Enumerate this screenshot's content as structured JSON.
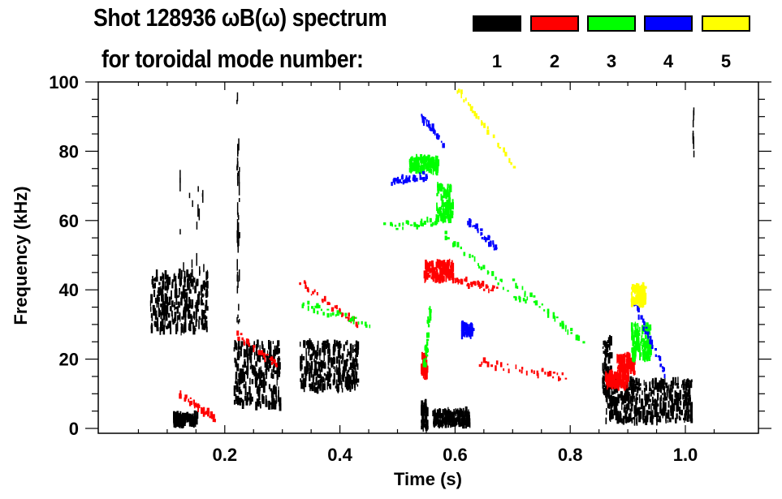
{
  "chart_data": {
    "type": "heatmap",
    "title": "Shot 128936 ωB(ω) spectrum",
    "subtitle": "for toroidal mode number:",
    "xlabel": "Time (s)",
    "ylabel": "Frequency (kHz)",
    "xlim": [
      0.0,
      1.05
    ],
    "ylim": [
      0,
      100
    ],
    "x_ticks": [
      0.2,
      0.4,
      0.6,
      0.8,
      1.0
    ],
    "x_tick_labels": [
      "0.2",
      "0.4",
      "0.6",
      "0.8",
      "1.0"
    ],
    "x_minor_step": 0.05,
    "y_ticks": [
      0,
      20,
      40,
      60,
      80,
      100
    ],
    "y_tick_labels": [
      "0",
      "20",
      "40",
      "60",
      "80",
      "100"
    ],
    "y_minor_step": 5,
    "grid": false,
    "legend_placement": "top-right",
    "legend": [
      {
        "mode": "1",
        "color": "#000000"
      },
      {
        "mode": "2",
        "color": "#ff0000"
      },
      {
        "mode": "3",
        "color": "#00ff00"
      },
      {
        "mode": "4",
        "color": "#0000ff"
      },
      {
        "mode": "5",
        "color": "#ffff00"
      }
    ],
    "features": [
      {
        "mode": 1,
        "name": "early-burst",
        "t": [
          0.07,
          0.17
        ],
        "f": [
          28,
          45
        ],
        "kind": "blob"
      },
      {
        "mode": 1,
        "name": "early-upper",
        "t": [
          0.12,
          0.165
        ],
        "f": [
          40,
          75
        ],
        "kind": "streaks"
      },
      {
        "mode": 1,
        "name": "early-low",
        "t": [
          0.11,
          0.15
        ],
        "f": [
          1,
          4
        ],
        "kind": "blob"
      },
      {
        "mode": 1,
        "name": "burst-0.22",
        "t": [
          0.215,
          0.295
        ],
        "f": [
          6,
          25
        ],
        "kind": "blob"
      },
      {
        "mode": 1,
        "name": "burst-0.34",
        "t": [
          0.33,
          0.43
        ],
        "f": [
          11,
          25
        ],
        "kind": "blob"
      },
      {
        "mode": 1,
        "name": "spike-0.545",
        "t": [
          0.54,
          0.55
        ],
        "f": [
          0,
          8
        ],
        "kind": "blob"
      },
      {
        "mode": 1,
        "name": "low-0.58",
        "t": [
          0.56,
          0.625
        ],
        "f": [
          1,
          5
        ],
        "kind": "blob"
      },
      {
        "mode": 1,
        "name": "late-burst",
        "t": [
          0.86,
          1.01
        ],
        "f": [
          2,
          14
        ],
        "kind": "blob"
      },
      {
        "mode": 1,
        "name": "late-vertical",
        "t": [
          0.855,
          0.87
        ],
        "f": [
          10,
          26
        ],
        "kind": "blob"
      },
      {
        "mode": 1,
        "name": "streak-0.22",
        "t": [
          0.22,
          0.225
        ],
        "f": [
          30,
          96
        ],
        "kind": "streaks"
      },
      {
        "mode": 1,
        "name": "streak-1.01",
        "t": [
          1.012,
          1.014
        ],
        "f": [
          78,
          92
        ],
        "kind": "streaks"
      },
      {
        "mode": 2,
        "name": "chirp-0.2",
        "t": [
          0.22,
          0.29
        ],
        "f": [
          [
            0.22,
            27
          ],
          [
            0.29,
            18
          ]
        ],
        "kind": "line"
      },
      {
        "mode": 2,
        "name": "chirp-0.33",
        "t": [
          0.33,
          0.43
        ],
        "f": [
          [
            0.33,
            42
          ],
          [
            0.43,
            30
          ]
        ],
        "kind": "line"
      },
      {
        "mode": 2,
        "name": "low-0.12",
        "t": [
          0.12,
          0.18
        ],
        "f": [
          [
            0.12,
            10
          ],
          [
            0.18,
            3
          ]
        ],
        "kind": "line"
      },
      {
        "mode": 2,
        "name": "blob-0.57",
        "t": [
          0.545,
          0.595
        ],
        "f": [
          43,
          48
        ],
        "kind": "blob"
      },
      {
        "mode": 2,
        "name": "tail-0.6",
        "t": [
          0.6,
          0.67
        ],
        "f": [
          [
            0.6,
            43
          ],
          [
            0.67,
            40
          ]
        ],
        "kind": "line"
      },
      {
        "mode": 2,
        "name": "line-0.65",
        "t": [
          0.64,
          0.79
        ],
        "f": [
          [
            0.64,
            19
          ],
          [
            0.79,
            15
          ]
        ],
        "kind": "line"
      },
      {
        "mode": 2,
        "name": "spike-0.545",
        "t": [
          0.54,
          0.55
        ],
        "f": [
          15,
          21
        ],
        "kind": "blob"
      },
      {
        "mode": 2,
        "name": "late-0.89",
        "t": [
          0.88,
          0.91
        ],
        "f": [
          16,
          21
        ],
        "kind": "blob"
      },
      {
        "mode": 2,
        "name": "late-0.86",
        "t": [
          0.86,
          0.9
        ],
        "f": [
          12,
          16
        ],
        "kind": "blob"
      },
      {
        "mode": 3,
        "name": "line-0.47-0.57",
        "t": [
          0.47,
          0.58
        ],
        "f": [
          [
            0.47,
            58
          ],
          [
            0.58,
            60
          ]
        ],
        "kind": "line"
      },
      {
        "mode": 3,
        "name": "blob-0.58",
        "t": [
          0.565,
          0.595
        ],
        "f": [
          60,
          70
        ],
        "kind": "blob"
      },
      {
        "mode": 3,
        "name": "upper-0.53",
        "t": [
          0.52,
          0.57
        ],
        "f": [
          74,
          78
        ],
        "kind": "blob"
      },
      {
        "mode": 3,
        "name": "decay-0.6",
        "t": [
          0.58,
          0.72
        ],
        "f": [
          [
            0.58,
            56
          ],
          [
            0.72,
            36
          ]
        ],
        "kind": "line"
      },
      {
        "mode": 3,
        "name": "decay-0.7",
        "t": [
          0.7,
          0.82
        ],
        "f": [
          [
            0.7,
            42
          ],
          [
            0.82,
            25
          ]
        ],
        "kind": "line"
      },
      {
        "mode": 3,
        "name": "chirp-0.35",
        "t": [
          0.33,
          0.45
        ],
        "f": [
          [
            0.33,
            36
          ],
          [
            0.45,
            30
          ]
        ],
        "kind": "line"
      },
      {
        "mode": 3,
        "name": "late-0.92",
        "t": [
          0.905,
          0.94
        ],
        "f": [
          20,
          30
        ],
        "kind": "blob"
      },
      {
        "mode": 3,
        "name": "vertical-0.55",
        "t": [
          0.545,
          0.555
        ],
        "f": [
          18,
          35
        ],
        "kind": "line"
      },
      {
        "mode": 4,
        "name": "line-0.49",
        "t": [
          0.49,
          0.55
        ],
        "f": [
          [
            0.49,
            71
          ],
          [
            0.55,
            73
          ]
        ],
        "kind": "line"
      },
      {
        "mode": 4,
        "name": "upper-0.55",
        "t": [
          0.54,
          0.58
        ],
        "f": [
          [
            0.54,
            90
          ],
          [
            0.58,
            82
          ]
        ],
        "kind": "line"
      },
      {
        "mode": 4,
        "name": "decay-0.62",
        "t": [
          0.62,
          0.67
        ],
        "f": [
          [
            0.62,
            60
          ],
          [
            0.67,
            52
          ]
        ],
        "kind": "line"
      },
      {
        "mode": 4,
        "name": "late-0.93",
        "t": [
          0.91,
          0.965
        ],
        "f": [
          [
            0.91,
            36
          ],
          [
            0.965,
            15
          ]
        ],
        "kind": "line"
      },
      {
        "mode": 4,
        "name": "mid-0.62",
        "t": [
          0.61,
          0.63
        ],
        "f": [
          27,
          30
        ],
        "kind": "blob"
      },
      {
        "mode": 5,
        "name": "chirp-0.6",
        "t": [
          0.6,
          0.7
        ],
        "f": [
          [
            0.6,
            98
          ],
          [
            0.7,
            76
          ]
        ],
        "kind": "line"
      },
      {
        "mode": 5,
        "name": "late-0.91",
        "t": [
          0.905,
          0.93
        ],
        "f": [
          36,
          41
        ],
        "kind": "blob"
      }
    ]
  }
}
